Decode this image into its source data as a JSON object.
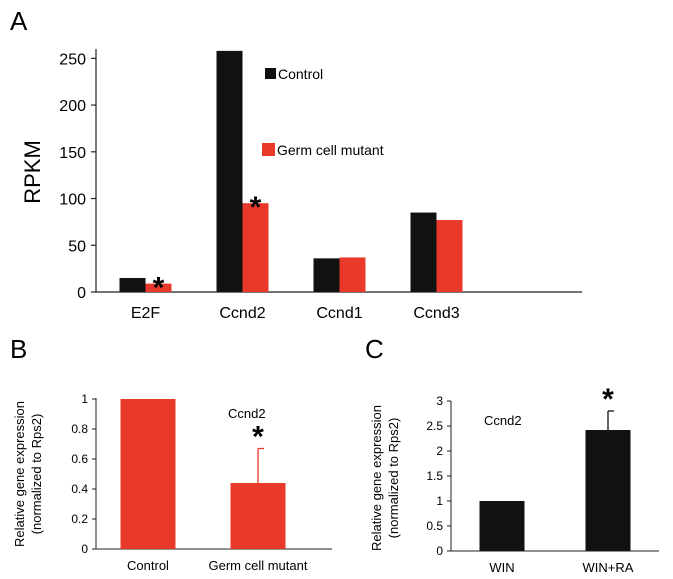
{
  "colors": {
    "control": "#111111",
    "mutant": "#e8392b",
    "axis": "#222222"
  },
  "chart_data": [
    {
      "panel": "A",
      "type": "bar",
      "ylabel": "RPKM",
      "ylim": [
        0,
        260
      ],
      "yticks": [
        "0",
        "50",
        "100",
        "150",
        "200",
        "250"
      ],
      "categories": [
        "E2F",
        "Ccnd2",
        "Ccnd1",
        "Ccnd3"
      ],
      "series": [
        {
          "name": "Control",
          "values": [
            15,
            258,
            36,
            85
          ]
        },
        {
          "name": "Germ cell mutant",
          "values": [
            9,
            95,
            37,
            77
          ]
        }
      ],
      "significance": [
        {
          "category": "E2F",
          "series": "Germ cell mutant",
          "label": "*"
        },
        {
          "category": "Ccnd2",
          "series": "Germ cell mutant",
          "label": "*"
        }
      ],
      "legend": "upper center, inside plot"
    },
    {
      "panel": "B",
      "type": "bar",
      "ylabel": "Relative gene expression (normalized to Rps2)",
      "annotation": "Ccnd2",
      "ylim": [
        0,
        1
      ],
      "yticks": [
        "0",
        "0.2",
        "0.4",
        "0.6",
        "0.8",
        "1"
      ],
      "categories": [
        "Control",
        "Germ cell mutant"
      ],
      "values": [
        1.0,
        0.44
      ],
      "errors": [
        0.0,
        0.23
      ],
      "significance": [
        {
          "category": "Germ cell mutant",
          "label": "*"
        }
      ]
    },
    {
      "panel": "C",
      "type": "bar",
      "ylabel": "Relative gene expression (normalized to Rps2)",
      "annotation": "Ccnd2",
      "ylim": [
        0,
        3
      ],
      "yticks": [
        "0",
        "0.5",
        "1",
        "1.5",
        "2",
        "2.5",
        "3"
      ],
      "categories": [
        "WIN",
        "WIN+RA"
      ],
      "values": [
        1.0,
        2.42
      ],
      "errors": [
        0.0,
        0.38
      ],
      "significance": [
        {
          "category": "WIN+RA",
          "label": "*"
        }
      ]
    }
  ],
  "panel_letters": [
    "A",
    "B",
    "C"
  ],
  "ylabel_lines": [
    "Relative gene expression",
    "(normalized to Rps2)"
  ]
}
